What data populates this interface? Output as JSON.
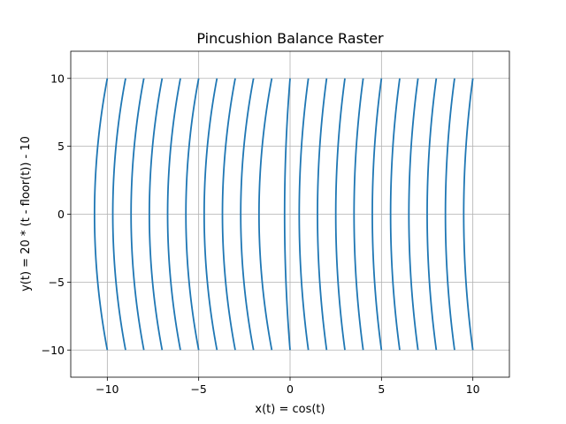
{
  "chart_data": {
    "type": "line",
    "title": "Pincushion Balance Raster",
    "xlabel": "x(t) = cos(t)",
    "ylabel": "y(t) = 20 * (t - floor(t)) - 10",
    "xlim": [
      -12,
      12
    ],
    "ylim": [
      -12,
      12
    ],
    "xticks": [
      -10,
      -5,
      0,
      5,
      10
    ],
    "yticks": [
      -10,
      -5,
      0,
      5,
      10
    ],
    "xtick_labels": [
      "−10",
      "−5",
      "0",
      "5",
      "10"
    ],
    "ytick_labels": [
      "−10",
      "−5",
      "0",
      "5",
      "10"
    ],
    "grid": true,
    "line_color": "#1f77b4",
    "series": [
      {
        "x_top": -10,
        "x_mid": -10.7,
        "y": [
          -10,
          10
        ]
      },
      {
        "x_top": -9,
        "x_mid": -9.7,
        "y": [
          -10,
          10
        ]
      },
      {
        "x_top": -8,
        "x_mid": -8.7,
        "y": [
          -10,
          10
        ]
      },
      {
        "x_top": -7,
        "x_mid": -7.7,
        "y": [
          -10,
          10
        ]
      },
      {
        "x_top": -6,
        "x_mid": -6.7,
        "y": [
          -10,
          10
        ]
      },
      {
        "x_top": -5,
        "x_mid": -5.7,
        "y": [
          -10,
          10
        ]
      },
      {
        "x_top": -4,
        "x_mid": -4.7,
        "y": [
          -10,
          10
        ]
      },
      {
        "x_top": -3,
        "x_mid": -3.7,
        "y": [
          -10,
          10
        ]
      },
      {
        "x_top": -2,
        "x_mid": -2.7,
        "y": [
          -10,
          10
        ]
      },
      {
        "x_top": -1,
        "x_mid": -1.7,
        "y": [
          -10,
          10
        ]
      },
      {
        "x_top": 0,
        "x_mid": -0.3,
        "y": [
          -10,
          10
        ]
      },
      {
        "x_top": 1,
        "x_mid": 0.5,
        "y": [
          -10,
          10
        ]
      },
      {
        "x_top": 2,
        "x_mid": 1.5,
        "y": [
          -10,
          10
        ]
      },
      {
        "x_top": 3,
        "x_mid": 2.5,
        "y": [
          -10,
          10
        ]
      },
      {
        "x_top": 4,
        "x_mid": 3.5,
        "y": [
          -10,
          10
        ]
      },
      {
        "x_top": 5,
        "x_mid": 4.5,
        "y": [
          -10,
          10
        ]
      },
      {
        "x_top": 6,
        "x_mid": 5.5,
        "y": [
          -10,
          10
        ]
      },
      {
        "x_top": 7,
        "x_mid": 6.5,
        "y": [
          -10,
          10
        ]
      },
      {
        "x_top": 8,
        "x_mid": 7.5,
        "y": [
          -10,
          10
        ]
      },
      {
        "x_top": 9,
        "x_mid": 8.5,
        "y": [
          -10,
          10
        ]
      },
      {
        "x_top": 10,
        "x_mid": 9.5,
        "y": [
          -10,
          10
        ]
      }
    ]
  }
}
